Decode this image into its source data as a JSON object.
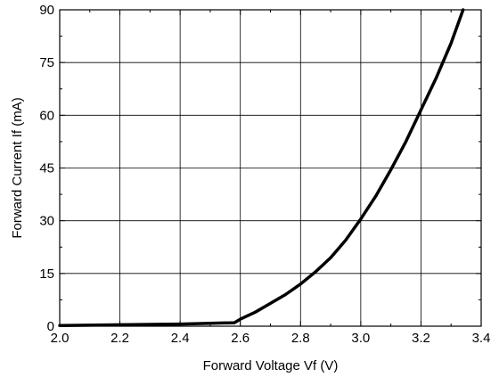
{
  "chart_data": {
    "type": "line",
    "title": "",
    "xlabel": "Forward Voltage Vf (V)",
    "ylabel": "Forward Current If (mA)",
    "xlim": [
      2.0,
      3.4
    ],
    "ylim": [
      0,
      90
    ],
    "grid": true,
    "legend": "none",
    "x_ticks": [
      2.0,
      2.2,
      2.4,
      2.6,
      2.8,
      3.0,
      3.2,
      3.4
    ],
    "x_tick_labels": [
      "2.0",
      "2.2",
      "2.4",
      "2.6",
      "2.8",
      "3.0",
      "3.2",
      "3.4"
    ],
    "y_ticks": [
      0,
      15,
      30,
      45,
      60,
      75,
      90
    ],
    "y_tick_labels": [
      "0",
      "15",
      "30",
      "45",
      "60",
      "75",
      "90"
    ],
    "series": [
      {
        "color": "#000000",
        "points": [
          [
            2.0,
            0.2
          ],
          [
            2.2,
            0.4
          ],
          [
            2.4,
            0.6
          ],
          [
            2.58,
            1.0
          ],
          [
            2.6,
            2.0
          ],
          [
            2.65,
            4.0
          ],
          [
            2.7,
            6.5
          ],
          [
            2.75,
            9.0
          ],
          [
            2.8,
            12.0
          ],
          [
            2.85,
            15.5
          ],
          [
            2.9,
            19.5
          ],
          [
            2.95,
            24.5
          ],
          [
            3.0,
            30.5
          ],
          [
            3.05,
            37.0
          ],
          [
            3.1,
            44.5
          ],
          [
            3.15,
            52.5
          ],
          [
            3.2,
            61.5
          ],
          [
            3.25,
            70.5
          ],
          [
            3.3,
            80.5
          ],
          [
            3.34,
            90.0
          ]
        ]
      }
    ]
  }
}
